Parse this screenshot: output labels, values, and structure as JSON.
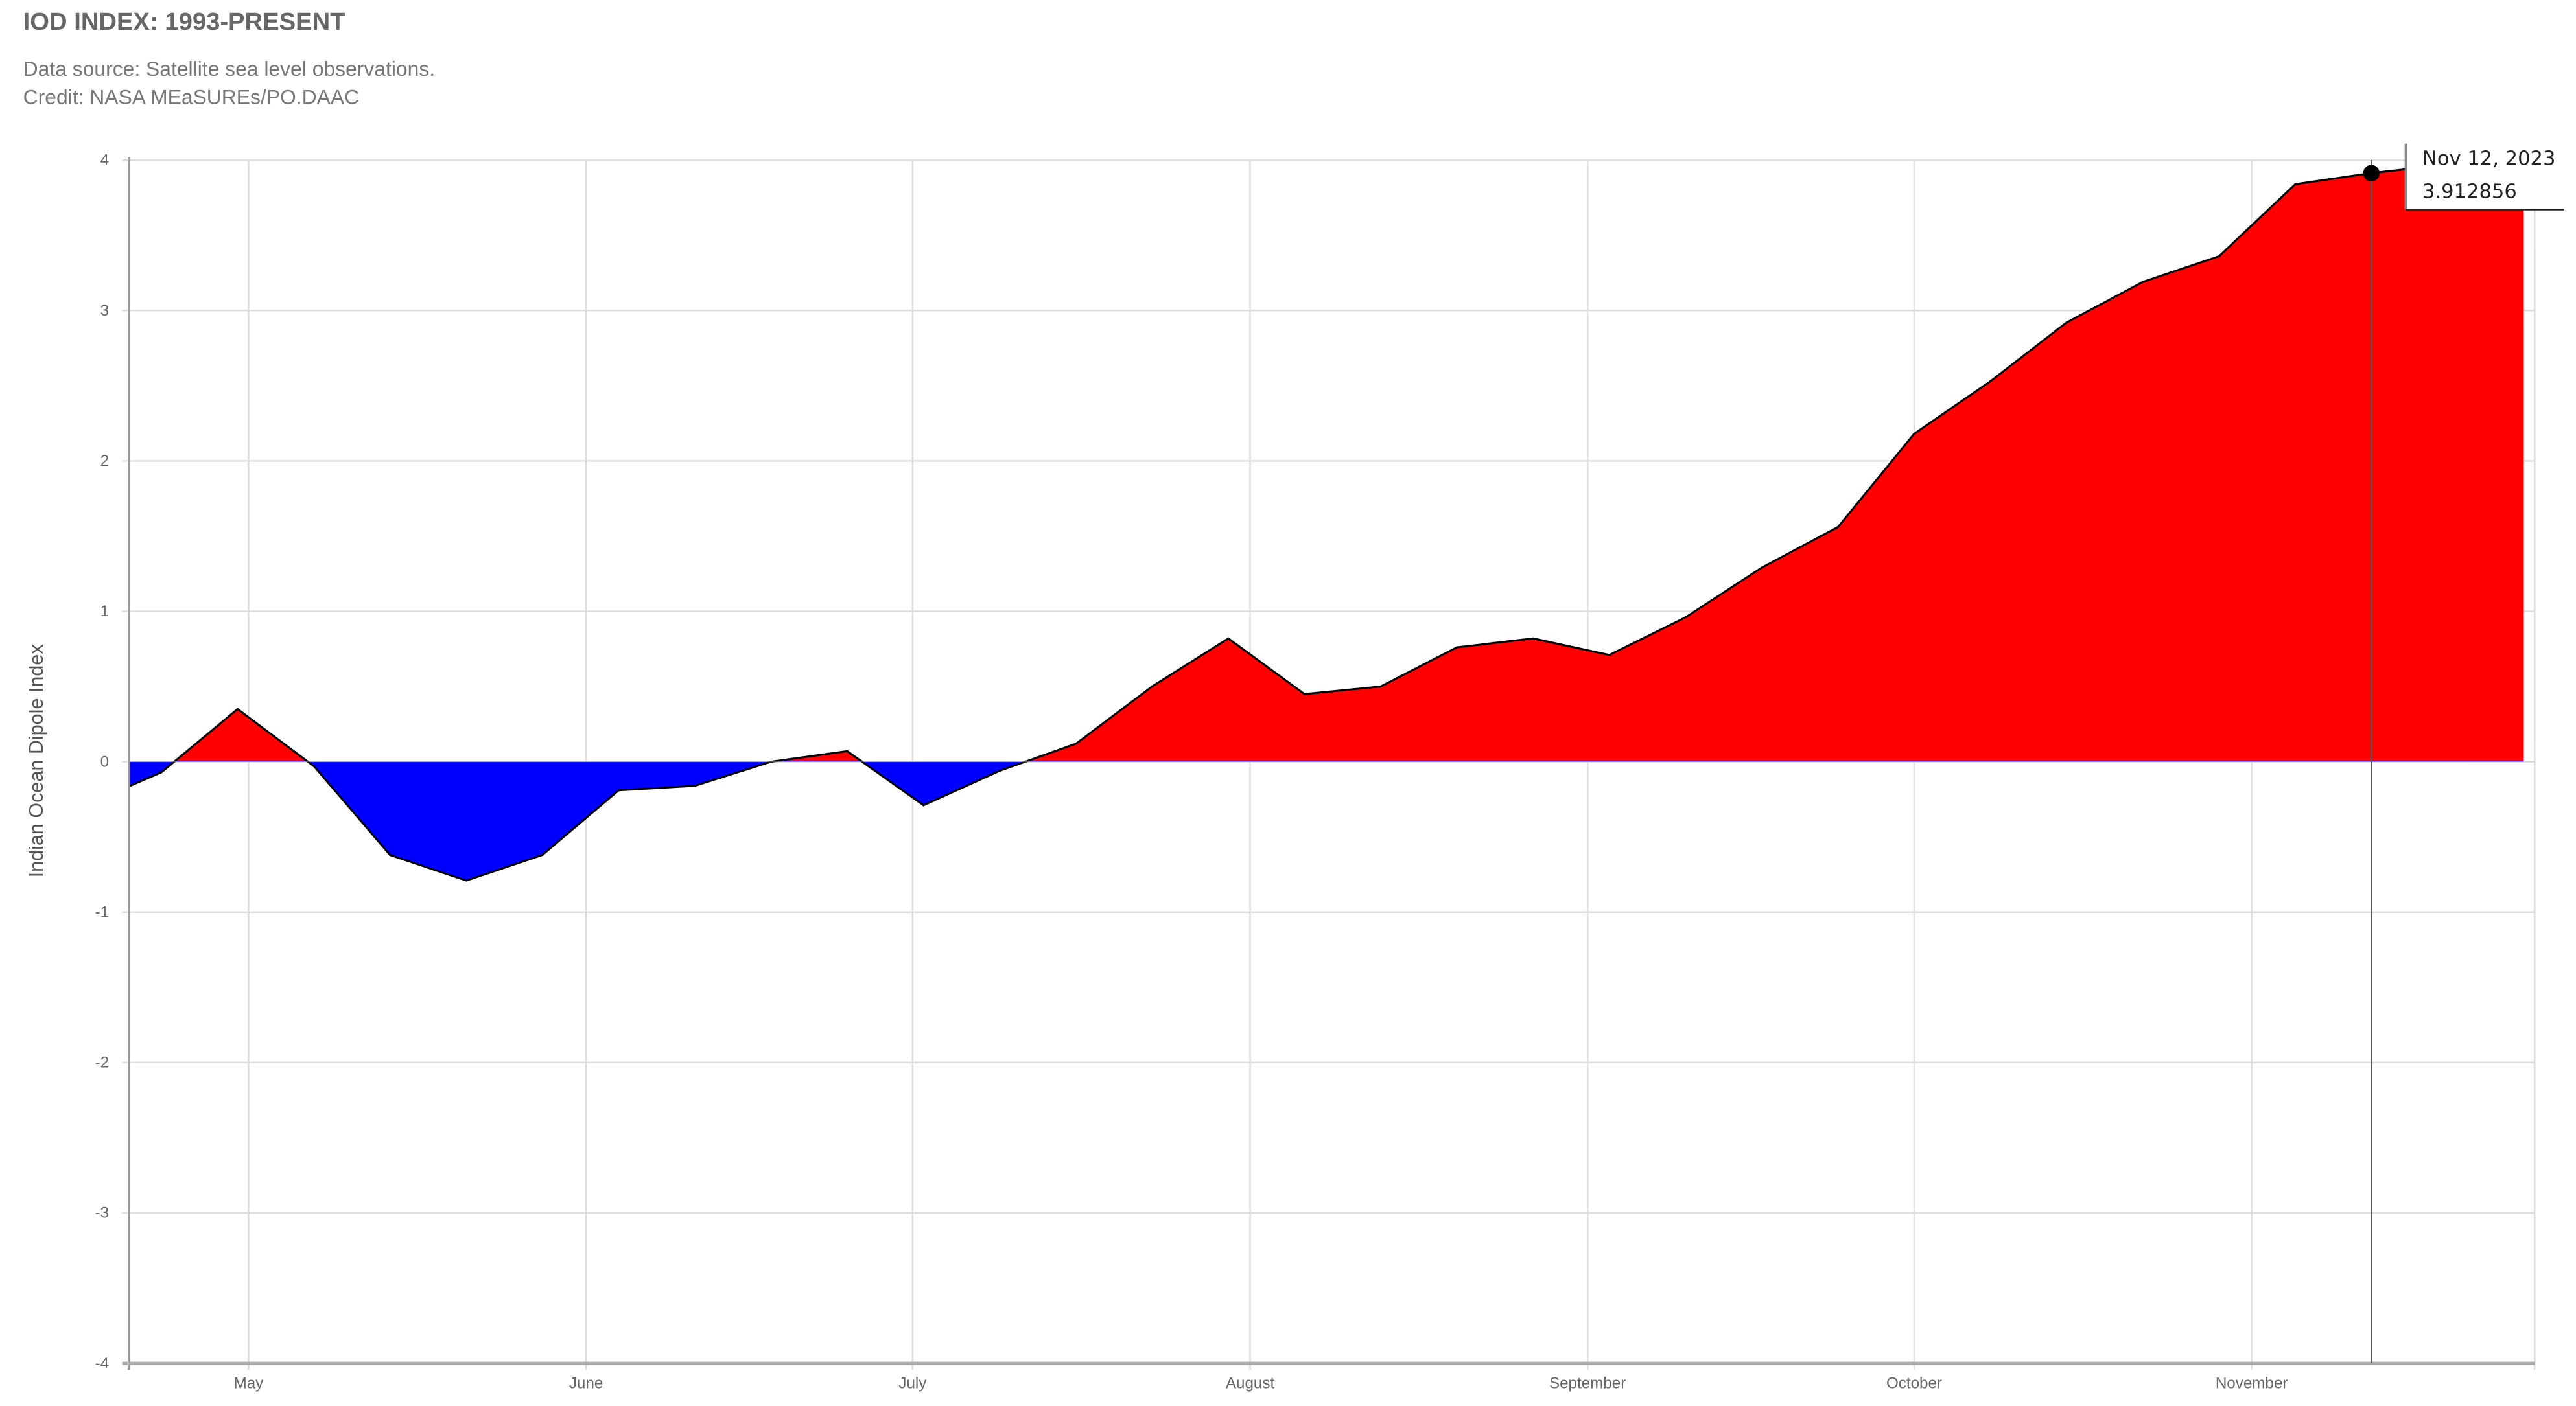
{
  "header": {
    "title": "IOD INDEX: 1993-PRESENT",
    "source": "Data source: Satellite sea level observations.",
    "credit": "Credit: NASA MEaSUREs/PO.DAAC"
  },
  "tooltip": {
    "date": "Nov 12, 2023",
    "value": "3.912856"
  },
  "colors": {
    "positive": "#ff0000",
    "negative": "#0000ff",
    "line": "#000000"
  },
  "chart_data": {
    "type": "area",
    "title": "IOD INDEX: 1993-PRESENT",
    "xlabel": "",
    "ylabel": "Indian Ocean Dipole Index",
    "ylim": [
      -4,
      4
    ],
    "xlim": [
      "2023-04-20",
      "2023-11-27"
    ],
    "yticks": [
      "4",
      "3",
      "2",
      "1",
      "0",
      "-1",
      "-2",
      "-3",
      "-4"
    ],
    "xticks": [
      {
        "date": "2023-05-01",
        "label": "May"
      },
      {
        "date": "2023-06-01",
        "label": "June"
      },
      {
        "date": "2023-07-01",
        "label": "July"
      },
      {
        "date": "2023-08-01",
        "label": "August"
      },
      {
        "date": "2023-09-01",
        "label": "September"
      },
      {
        "date": "2023-10-01",
        "label": "October"
      },
      {
        "date": "2023-11-01",
        "label": "November"
      }
    ],
    "grid": true,
    "x": [
      "2023-04-16",
      "2023-04-23",
      "2023-04-30",
      "2023-05-07",
      "2023-05-14",
      "2023-05-21",
      "2023-05-28",
      "2023-06-04",
      "2023-06-11",
      "2023-06-18",
      "2023-06-25",
      "2023-07-02",
      "2023-07-09",
      "2023-07-16",
      "2023-07-23",
      "2023-07-30",
      "2023-08-06",
      "2023-08-13",
      "2023-08-20",
      "2023-08-27",
      "2023-09-03",
      "2023-09-10",
      "2023-09-17",
      "2023-09-24",
      "2023-10-01",
      "2023-10-08",
      "2023-10-15",
      "2023-10-22",
      "2023-10-29",
      "2023-11-05",
      "2023-11-12",
      "2023-11-19",
      "2023-11-26"
    ],
    "values": [
      -0.29,
      -0.07,
      0.35,
      -0.03,
      -0.62,
      -0.79,
      -0.62,
      -0.19,
      -0.16,
      0.0,
      0.07,
      -0.29,
      -0.06,
      0.12,
      0.5,
      0.82,
      0.45,
      0.5,
      0.76,
      0.82,
      0.71,
      0.96,
      1.29,
      1.56,
      2.18,
      2.53,
      2.92,
      3.19,
      3.36,
      3.84,
      3.912856,
      3.97,
      3.98
    ],
    "highlight": {
      "date": "2023-11-12",
      "value": 3.912856
    }
  }
}
